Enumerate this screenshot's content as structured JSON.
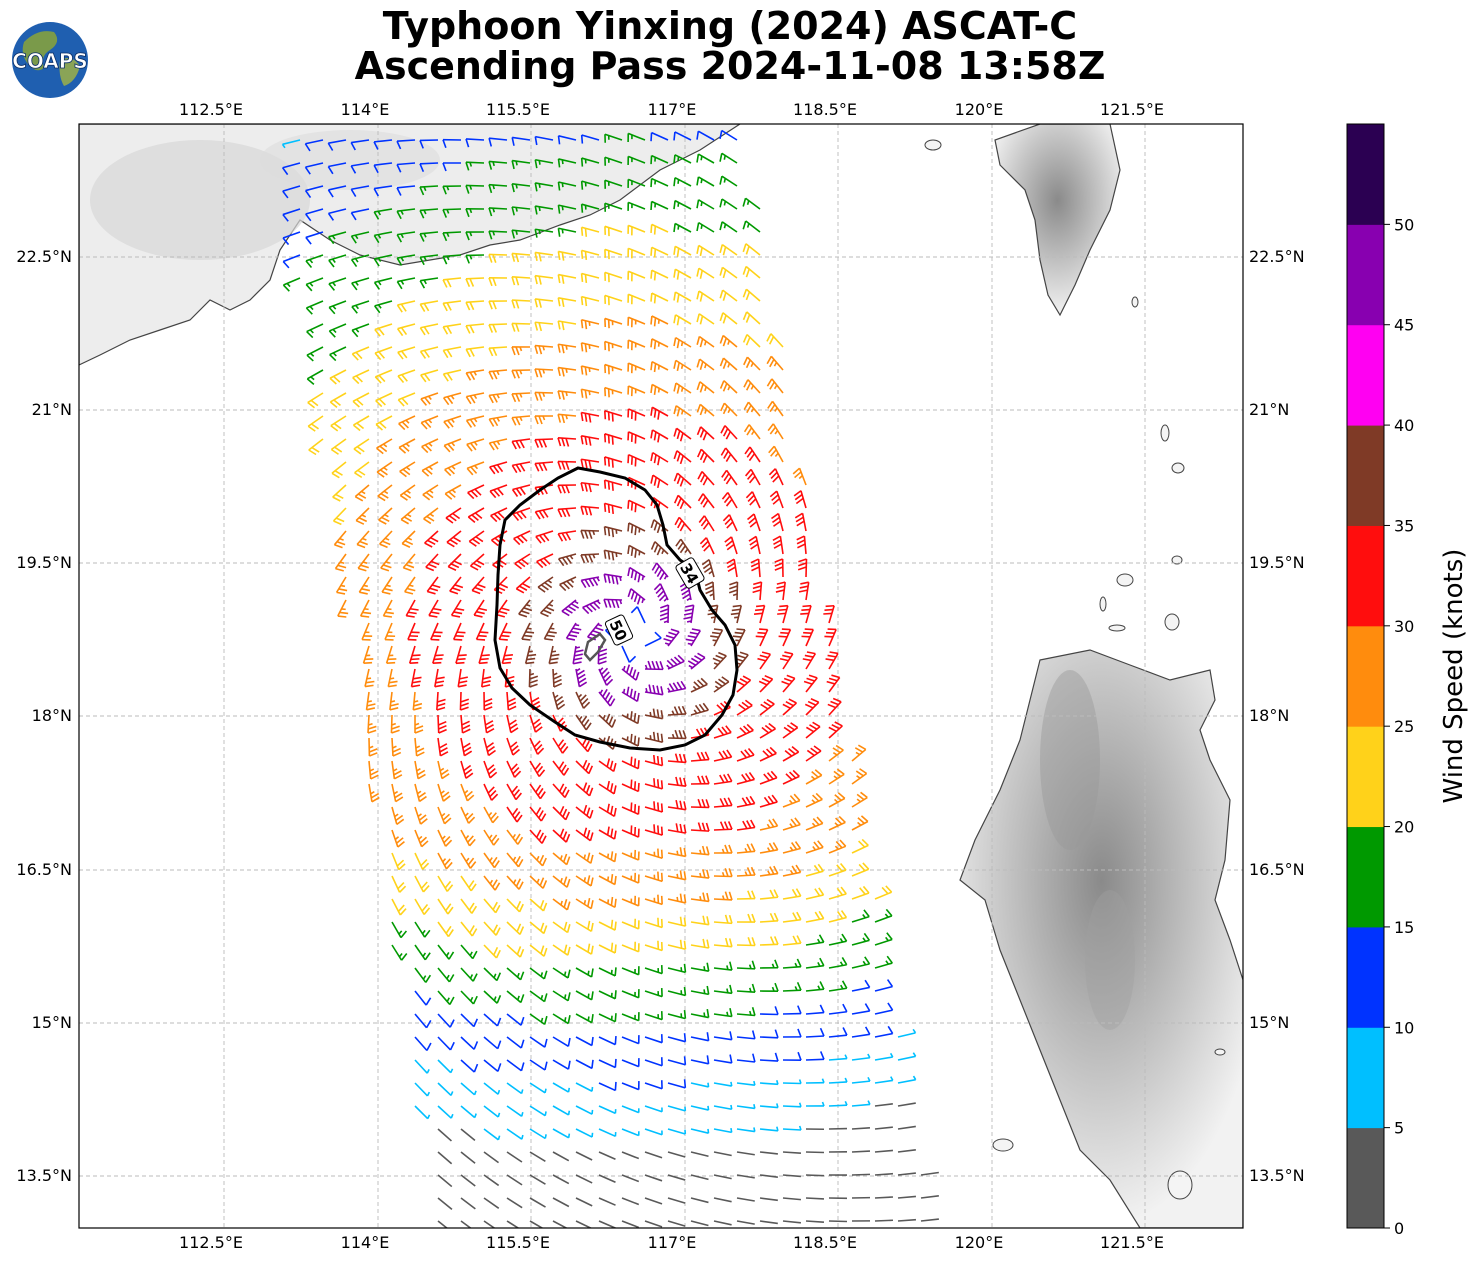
{
  "title_line1": "Typhoon Yinxing (2024) ASCAT-C",
  "title_line2": "Ascending Pass 2024-11-08 13:58Z",
  "logo_text": "COAPS",
  "lon_labels": [
    "112.5°E",
    "114°E",
    "115.5°E",
    "117°E",
    "118.5°E",
    "120°E",
    "121.5°E"
  ],
  "lat_labels": [
    "22.5°N",
    "21°N",
    "19.5°N",
    "18°N",
    "16.5°N",
    "15°N",
    "13.5°N"
  ],
  "contour_labels": [
    "34",
    "50"
  ],
  "colorbar": {
    "label": "Wind Speed (knots)",
    "ticks": [
      "0",
      "5",
      "10",
      "15",
      "20",
      "25",
      "30",
      "35",
      "40",
      "45",
      "50"
    ],
    "colors": [
      "#595959",
      "#00bfff",
      "#0033ff",
      "#009900",
      "#ffd21a",
      "#ff8c0d",
      "#ff0d0d",
      "#7f3a26",
      "#ff00f2",
      "#8800b0",
      "#2b0052"
    ]
  },
  "storm_center": {
    "lon": 116.5,
    "lat": 18.8
  }
}
